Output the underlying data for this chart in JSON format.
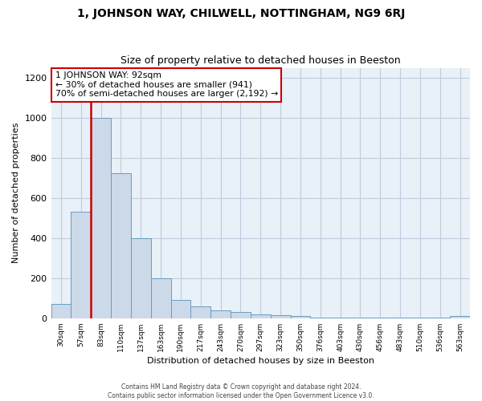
{
  "title": "1, JOHNSON WAY, CHILWELL, NOTTINGHAM, NG9 6RJ",
  "subtitle": "Size of property relative to detached houses in Beeston",
  "xlabel": "Distribution of detached houses by size in Beeston",
  "ylabel": "Number of detached properties",
  "footer_line1": "Contains HM Land Registry data © Crown copyright and database right 2024.",
  "footer_line2": "Contains public sector information licensed under the Open Government Licence v3.0.",
  "bar_labels": [
    "30sqm",
    "57sqm",
    "83sqm",
    "110sqm",
    "137sqm",
    "163sqm",
    "190sqm",
    "217sqm",
    "243sqm",
    "270sqm",
    "297sqm",
    "323sqm",
    "350sqm",
    "376sqm",
    "403sqm",
    "430sqm",
    "456sqm",
    "483sqm",
    "510sqm",
    "536sqm",
    "563sqm"
  ],
  "bar_values": [
    70,
    530,
    1000,
    725,
    400,
    200,
    90,
    60,
    40,
    30,
    20,
    15,
    10,
    5,
    5,
    5,
    5,
    5,
    5,
    5,
    10
  ],
  "bar_color": "#ccd9e8",
  "bar_edgecolor": "#6a9cc0",
  "property_label": "1 JOHNSON WAY: 92sqm",
  "annotation_line1": "← 30% of detached houses are smaller (941)",
  "annotation_line2": "70% of semi-detached houses are larger (2,192) →",
  "vline_color": "#cc0000",
  "annotation_box_color": "#ffffff",
  "annotation_box_edgecolor": "#cc0000",
  "ylim": [
    0,
    1250
  ],
  "yticks": [
    0,
    200,
    400,
    600,
    800,
    1000,
    1200
  ],
  "background_color": "#ffffff",
  "plot_bg_color": "#e8f0f8",
  "grid_color": "#c0ccdd"
}
